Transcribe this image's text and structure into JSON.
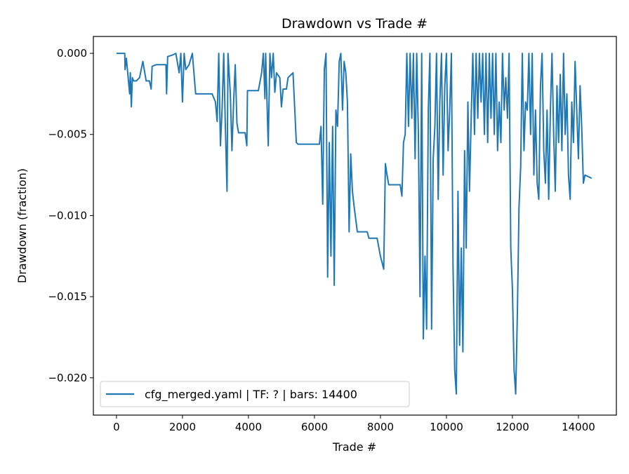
{
  "chart_data": {
    "type": "line",
    "title": "Drawdown vs Trade #",
    "xlabel": "Trade #",
    "ylabel": "Drawdown (fraction)",
    "xlim": [
      -700,
      15150
    ],
    "ylim": [
      -0.0223,
      0.00104
    ],
    "xticks": [
      0,
      2000,
      4000,
      6000,
      8000,
      10000,
      12000,
      14000
    ],
    "xtick_labels": [
      "0",
      "2000",
      "4000",
      "6000",
      "8000",
      "10000",
      "12000",
      "14000"
    ],
    "yticks": [
      0.0,
      -0.005,
      -0.01,
      -0.015,
      -0.02
    ],
    "ytick_labels": [
      "0.000",
      "−0.005",
      "−0.010",
      "−0.015",
      "−0.020"
    ],
    "grid": false,
    "legend_position": "lower-left",
    "series": [
      {
        "name": "cfg_merged.yaml | TF: ? | bars: 14400",
        "color": "#1f77b4",
        "points": [
          [
            0,
            0
          ],
          [
            250,
            0
          ],
          [
            260,
            -0.001
          ],
          [
            300,
            -0.0003
          ],
          [
            400,
            -0.0025
          ],
          [
            420,
            -0.0012
          ],
          [
            450,
            -0.0033
          ],
          [
            480,
            -0.0015
          ],
          [
            520,
            -0.0017
          ],
          [
            600,
            -0.0017
          ],
          [
            700,
            -0.0015
          ],
          [
            800,
            -0.0005
          ],
          [
            900,
            -0.0017
          ],
          [
            1000,
            -0.0017
          ],
          [
            1050,
            -0.0022
          ],
          [
            1080,
            -0.0008
          ],
          [
            1200,
            -0.0007
          ],
          [
            1500,
            -0.0007
          ],
          [
            1520,
            -0.0025
          ],
          [
            1550,
            -0.0002
          ],
          [
            1700,
            -0.0001
          ],
          [
            1800,
            0
          ],
          [
            1900,
            -0.0012
          ],
          [
            1950,
            0
          ],
          [
            2000,
            -0.003
          ],
          [
            2050,
            0
          ],
          [
            2100,
            -0.001
          ],
          [
            2200,
            -0.0007
          ],
          [
            2300,
            0
          ],
          [
            2400,
            -0.0025
          ],
          [
            2900,
            -0.0025
          ],
          [
            3000,
            -0.003
          ],
          [
            3050,
            -0.0042
          ],
          [
            3100,
            0
          ],
          [
            3150,
            -0.0057
          ],
          [
            3200,
            -0.0035
          ],
          [
            3250,
            0
          ],
          [
            3300,
            -0.0045
          ],
          [
            3350,
            -0.0085
          ],
          [
            3380,
            0
          ],
          [
            3450,
            -0.0025
          ],
          [
            3500,
            -0.006
          ],
          [
            3550,
            -0.003
          ],
          [
            3600,
            -0.0007
          ],
          [
            3650,
            -0.0043
          ],
          [
            3700,
            -0.0049
          ],
          [
            3900,
            -0.0049
          ],
          [
            3950,
            -0.0057
          ],
          [
            3970,
            -0.0023
          ],
          [
            4300,
            -0.0023
          ],
          [
            4400,
            -0.0012
          ],
          [
            4450,
            0
          ],
          [
            4500,
            -0.0028
          ],
          [
            4520,
            0
          ],
          [
            4600,
            -0.0057
          ],
          [
            4650,
            0
          ],
          [
            4700,
            -0.0015
          ],
          [
            4750,
            0
          ],
          [
            4800,
            -0.0024
          ],
          [
            4850,
            -0.0012
          ],
          [
            4950,
            -0.0015
          ],
          [
            5000,
            -0.0033
          ],
          [
            5050,
            -0.0022
          ],
          [
            5150,
            -0.0022
          ],
          [
            5200,
            -0.0015
          ],
          [
            5350,
            -0.0012
          ],
          [
            5400,
            -0.0033
          ],
          [
            5450,
            -0.0055
          ],
          [
            5500,
            -0.0056
          ],
          [
            6150,
            -0.0056
          ],
          [
            6200,
            -0.0045
          ],
          [
            6250,
            -0.0093
          ],
          [
            6300,
            -0.001
          ],
          [
            6350,
            0
          ],
          [
            6400,
            -0.0138
          ],
          [
            6450,
            -0.0055
          ],
          [
            6500,
            -0.0125
          ],
          [
            6550,
            -0.0045
          ],
          [
            6600,
            -0.0143
          ],
          [
            6650,
            -0.0035
          ],
          [
            6700,
            -0.0045
          ],
          [
            6750,
            -0.0005
          ],
          [
            6800,
            0
          ],
          [
            6850,
            -0.0035
          ],
          [
            6900,
            -0.0005
          ],
          [
            6950,
            -0.0012
          ],
          [
            7000,
            -0.003
          ],
          [
            7050,
            -0.011
          ],
          [
            7100,
            -0.0062
          ],
          [
            7150,
            -0.0085
          ],
          [
            7200,
            -0.0094
          ],
          [
            7300,
            -0.011
          ],
          [
            7600,
            -0.011
          ],
          [
            7650,
            -0.0114
          ],
          [
            7900,
            -0.0114
          ],
          [
            8000,
            -0.0125
          ],
          [
            8100,
            -0.0133
          ],
          [
            8150,
            -0.0068
          ],
          [
            8200,
            -0.0075
          ],
          [
            8250,
            -0.0081
          ],
          [
            8600,
            -0.0081
          ],
          [
            8650,
            -0.0088
          ],
          [
            8700,
            -0.0055
          ],
          [
            8750,
            -0.005
          ],
          [
            8800,
            0
          ],
          [
            8850,
            -0.0045
          ],
          [
            8900,
            0
          ],
          [
            8950,
            -0.004
          ],
          [
            9000,
            0
          ],
          [
            9050,
            -0.0065
          ],
          [
            9100,
            0
          ],
          [
            9150,
            -0.005
          ],
          [
            9200,
            -0.015
          ],
          [
            9250,
            0
          ],
          [
            9300,
            -0.0176
          ],
          [
            9350,
            -0.0125
          ],
          [
            9400,
            -0.017
          ],
          [
            9450,
            -0.0035
          ],
          [
            9500,
            0
          ],
          [
            9550,
            -0.017
          ],
          [
            9600,
            -0.0065
          ],
          [
            9650,
            -0.0045
          ],
          [
            9700,
            0
          ],
          [
            9750,
            -0.009
          ],
          [
            9800,
            -0.003
          ],
          [
            9850,
            0
          ],
          [
            9900,
            -0.0075
          ],
          [
            9950,
            -0.002
          ],
          [
            10000,
            0
          ],
          [
            10050,
            -0.006
          ],
          [
            10100,
            -0.0035
          ],
          [
            10150,
            0
          ],
          [
            10200,
            -0.013
          ],
          [
            10250,
            -0.0195
          ],
          [
            10300,
            -0.021
          ],
          [
            10350,
            -0.0085
          ],
          [
            10400,
            -0.018
          ],
          [
            10450,
            -0.012
          ],
          [
            10500,
            -0.0184
          ],
          [
            10550,
            -0.006
          ],
          [
            10600,
            -0.012
          ],
          [
            10650,
            -0.003
          ],
          [
            10700,
            -0.0085
          ],
          [
            10750,
            -0.004
          ],
          [
            10800,
            0
          ],
          [
            10850,
            -0.005
          ],
          [
            10900,
            0
          ],
          [
            10950,
            -0.004
          ],
          [
            11000,
            0
          ],
          [
            11050,
            -0.003
          ],
          [
            11100,
            0
          ],
          [
            11150,
            -0.005
          ],
          [
            11200,
            0
          ],
          [
            11250,
            -0.0055
          ],
          [
            11300,
            0
          ],
          [
            11350,
            -0.004
          ],
          [
            11400,
            0
          ],
          [
            11450,
            -0.005
          ],
          [
            11500,
            0
          ],
          [
            11550,
            -0.006
          ],
          [
            11600,
            -0.003
          ],
          [
            11650,
            -0.0055
          ],
          [
            11700,
            0
          ],
          [
            11750,
            -0.0035
          ],
          [
            11800,
            -0.0015
          ],
          [
            11850,
            -0.004
          ],
          [
            11900,
            0
          ],
          [
            11950,
            -0.012
          ],
          [
            12000,
            -0.0145
          ],
          [
            12050,
            -0.0195
          ],
          [
            12100,
            -0.021
          ],
          [
            12150,
            -0.016
          ],
          [
            12200,
            -0.0095
          ],
          [
            12250,
            -0.007
          ],
          [
            12300,
            0
          ],
          [
            12350,
            -0.006
          ],
          [
            12400,
            -0.003
          ],
          [
            12450,
            -0.0035
          ],
          [
            12500,
            0
          ],
          [
            12550,
            -0.005
          ],
          [
            12600,
            0
          ],
          [
            12650,
            -0.0075
          ],
          [
            12700,
            -0.0035
          ],
          [
            12750,
            -0.008
          ],
          [
            12800,
            -0.009
          ],
          [
            12850,
            -0.002
          ],
          [
            12900,
            0
          ],
          [
            12950,
            -0.006
          ],
          [
            13000,
            -0.008
          ],
          [
            13050,
            -0.0035
          ],
          [
            13100,
            -0.009
          ],
          [
            13150,
            -0.0035
          ],
          [
            13200,
            0
          ],
          [
            13250,
            -0.005
          ],
          [
            13300,
            -0.0085
          ],
          [
            13350,
            -0.002
          ],
          [
            13400,
            -0.0055
          ],
          [
            13450,
            -0.0013
          ],
          [
            13500,
            -0.006
          ],
          [
            13550,
            0
          ],
          [
            13600,
            -0.005
          ],
          [
            13650,
            -0.0025
          ],
          [
            13700,
            -0.0075
          ],
          [
            13750,
            -0.009
          ],
          [
            13800,
            -0.003
          ],
          [
            13850,
            -0.0055
          ],
          [
            13900,
            -0.0005
          ],
          [
            14000,
            -0.0065
          ],
          [
            14050,
            -0.002
          ],
          [
            14100,
            -0.0045
          ],
          [
            14150,
            -0.008
          ],
          [
            14200,
            -0.0075
          ],
          [
            14400,
            -0.0077
          ]
        ]
      }
    ]
  }
}
